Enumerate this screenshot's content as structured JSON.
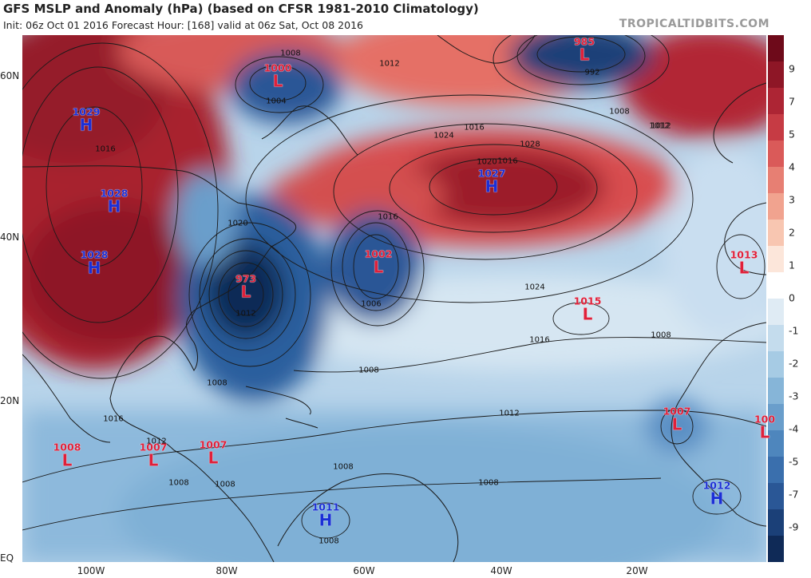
{
  "header": {
    "title": "GFS MSLP and Anomaly (hPa) (based on CFSR 1981-2010 Climatology)",
    "subtitle": "Init: 06z Oct 01 2016   Forecast Hour: [168]   valid at 06z Sat, Oct 08 2016",
    "brand": "TROPICALTIDBITS.COM"
  },
  "axes": {
    "latitudes": [
      "60N",
      "40N",
      "20N",
      "EQ"
    ],
    "longitudes": [
      "100W",
      "80W",
      "60W",
      "40W",
      "20W"
    ]
  },
  "colorbar": {
    "ticks": [
      "9",
      "7",
      "5",
      "4",
      "3",
      "2",
      "1",
      "0",
      "-1",
      "-2",
      "-3",
      "-4",
      "-5",
      "-7",
      "-9"
    ],
    "colors_high_to_low": [
      "#6e0a1a",
      "#8e1626",
      "#ad2534",
      "#c63b44",
      "#da5a59",
      "#e77f73",
      "#f1a38f",
      "#f8c6b1",
      "#fce6da",
      "#ffffff",
      "#dfebf4",
      "#c4dced",
      "#a6cbe4",
      "#86b5d8",
      "#6a9ecb",
      "#4e86bd",
      "#3a6fad",
      "#2a5796",
      "#1b4078",
      "#0f2a57"
    ],
    "grid_on": false,
    "orientation": "vertical-right"
  },
  "systems": [
    {
      "type": "H",
      "pressure": "1029"
    },
    {
      "type": "L",
      "pressure": "1000"
    },
    {
      "type": "L",
      "pressure": "985"
    },
    {
      "type": "H",
      "pressure": "1028"
    },
    {
      "type": "H",
      "pressure": "1027"
    },
    {
      "type": "H",
      "pressure": "1028"
    },
    {
      "type": "L",
      "pressure": "1002"
    },
    {
      "type": "L",
      "pressure": "973"
    },
    {
      "type": "L",
      "pressure": "1013"
    },
    {
      "type": "L",
      "pressure": "1015"
    },
    {
      "type": "L",
      "pressure": "1007"
    },
    {
      "type": "L",
      "pressure": "100"
    },
    {
      "type": "L",
      "pressure": "1008"
    },
    {
      "type": "L",
      "pressure": "1007"
    },
    {
      "type": "L",
      "pressure": "1007"
    },
    {
      "type": "H",
      "pressure": "1012"
    },
    {
      "type": "H",
      "pressure": "1011"
    }
  ],
  "isobar_labels": [
    "1008",
    "1012",
    "1004",
    "992",
    "1008",
    "1012",
    "1016",
    "1024",
    "1020",
    "1028",
    "1016",
    "1016",
    "1012",
    "1020",
    "1024",
    "1016",
    "1016",
    "1008",
    "1006",
    "1012",
    "1008",
    "1012",
    "1008",
    "1016",
    "1012",
    "1008",
    "1008",
    "1008",
    "1008",
    "1008"
  ]
}
